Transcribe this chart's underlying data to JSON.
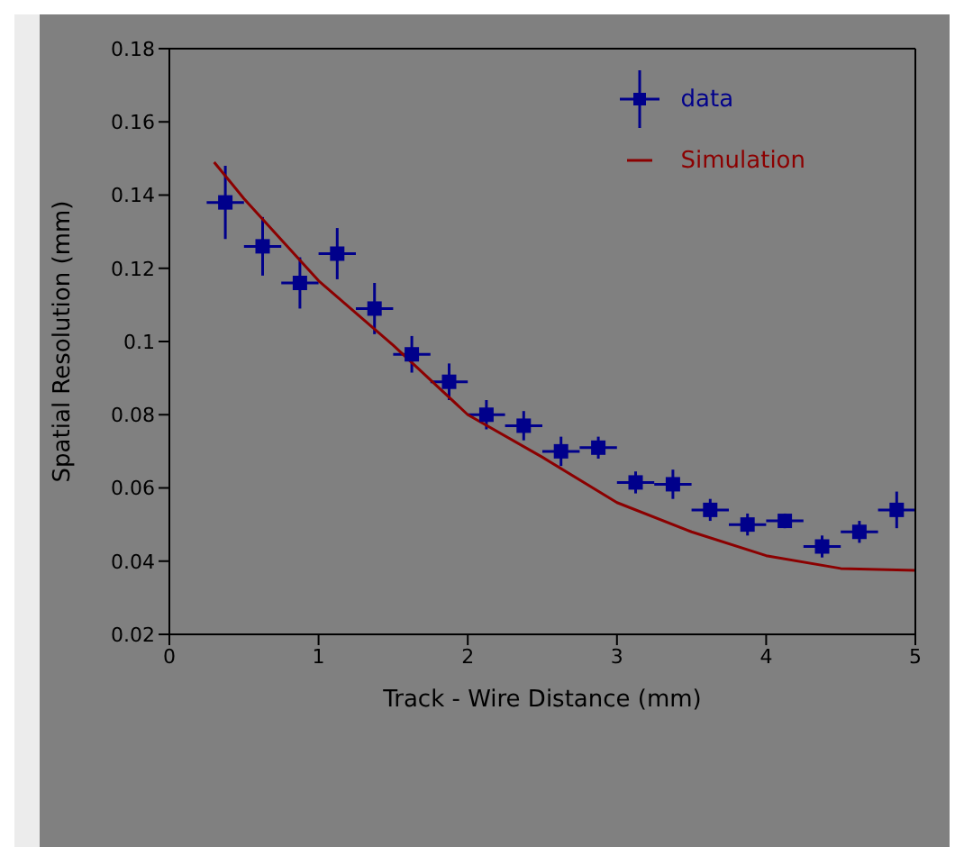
{
  "chart_data": {
    "type": "scatter",
    "xlabel": "Track - Wire Distance (mm)",
    "ylabel": "Spatial Resolution (mm)",
    "xlim": [
      0,
      5
    ],
    "xticks": [
      0,
      1,
      2,
      3,
      4,
      5
    ],
    "ylim": [
      0.02,
      0.18
    ],
    "yticks": [
      0.02,
      0.04,
      0.06,
      0.08,
      0.1,
      0.12,
      0.14,
      0.16,
      0.18
    ],
    "legend": "top right",
    "series": [
      {
        "name": "data",
        "color": "#00008b",
        "marker": "square",
        "x": [
          0.375,
          0.625,
          0.875,
          1.125,
          1.375,
          1.625,
          1.875,
          2.125,
          2.375,
          2.625,
          2.875,
          3.125,
          3.375,
          3.625,
          3.875,
          4.125,
          4.375,
          4.625,
          4.875
        ],
        "values": [
          0.138,
          0.126,
          0.116,
          0.124,
          0.109,
          0.0965,
          0.089,
          0.08,
          0.077,
          0.07,
          0.071,
          0.0615,
          0.061,
          0.054,
          0.05,
          0.051,
          0.044,
          0.048,
          0.054
        ],
        "errors": [
          0.01,
          0.008,
          0.007,
          0.007,
          0.007,
          0.005,
          0.005,
          0.004,
          0.004,
          0.004,
          0.003,
          0.003,
          0.004,
          0.003,
          0.003,
          0.002,
          0.003,
          0.003,
          0.005
        ],
        "xerrors": [
          0.125,
          0.125,
          0.125,
          0.125,
          0.125,
          0.125,
          0.125,
          0.125,
          0.125,
          0.125,
          0.125,
          0.125,
          0.125,
          0.125,
          0.125,
          0.125,
          0.125,
          0.125,
          0.125
        ]
      },
      {
        "name": "Simulation",
        "type": "line",
        "color": "#8b0000",
        "marker": "none",
        "x": [
          0.3,
          0.5,
          1,
          1.5,
          2,
          2.5,
          3,
          3.5,
          4,
          4.5,
          5
        ],
        "values": [
          0.149,
          0.139,
          0.1166,
          0.099,
          0.08,
          0.0684,
          0.056,
          0.048,
          0.0415,
          0.038,
          0.0375
        ]
      }
    ]
  }
}
